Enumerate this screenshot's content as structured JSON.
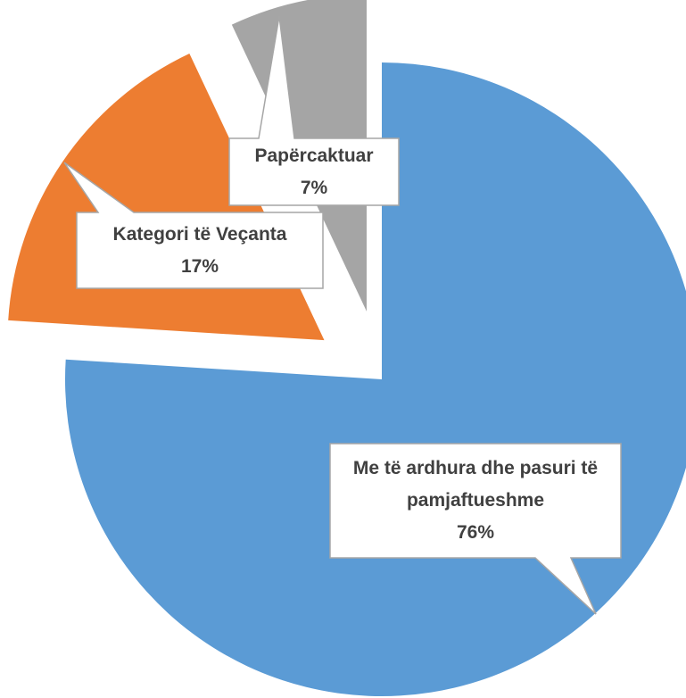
{
  "chart_data": {
    "type": "pie",
    "categories": [
      "Me të ardhura dhe pasuri të pamjaftueshme",
      "Kategori të Veçanta",
      "Papërcaktuar"
    ],
    "values": [
      76,
      17,
      7
    ],
    "value_labels": [
      "76%",
      "17%",
      "7%"
    ],
    "colors": [
      "#5b9bd5",
      "#ed7d31",
      "#a5a5a5"
    ]
  }
}
